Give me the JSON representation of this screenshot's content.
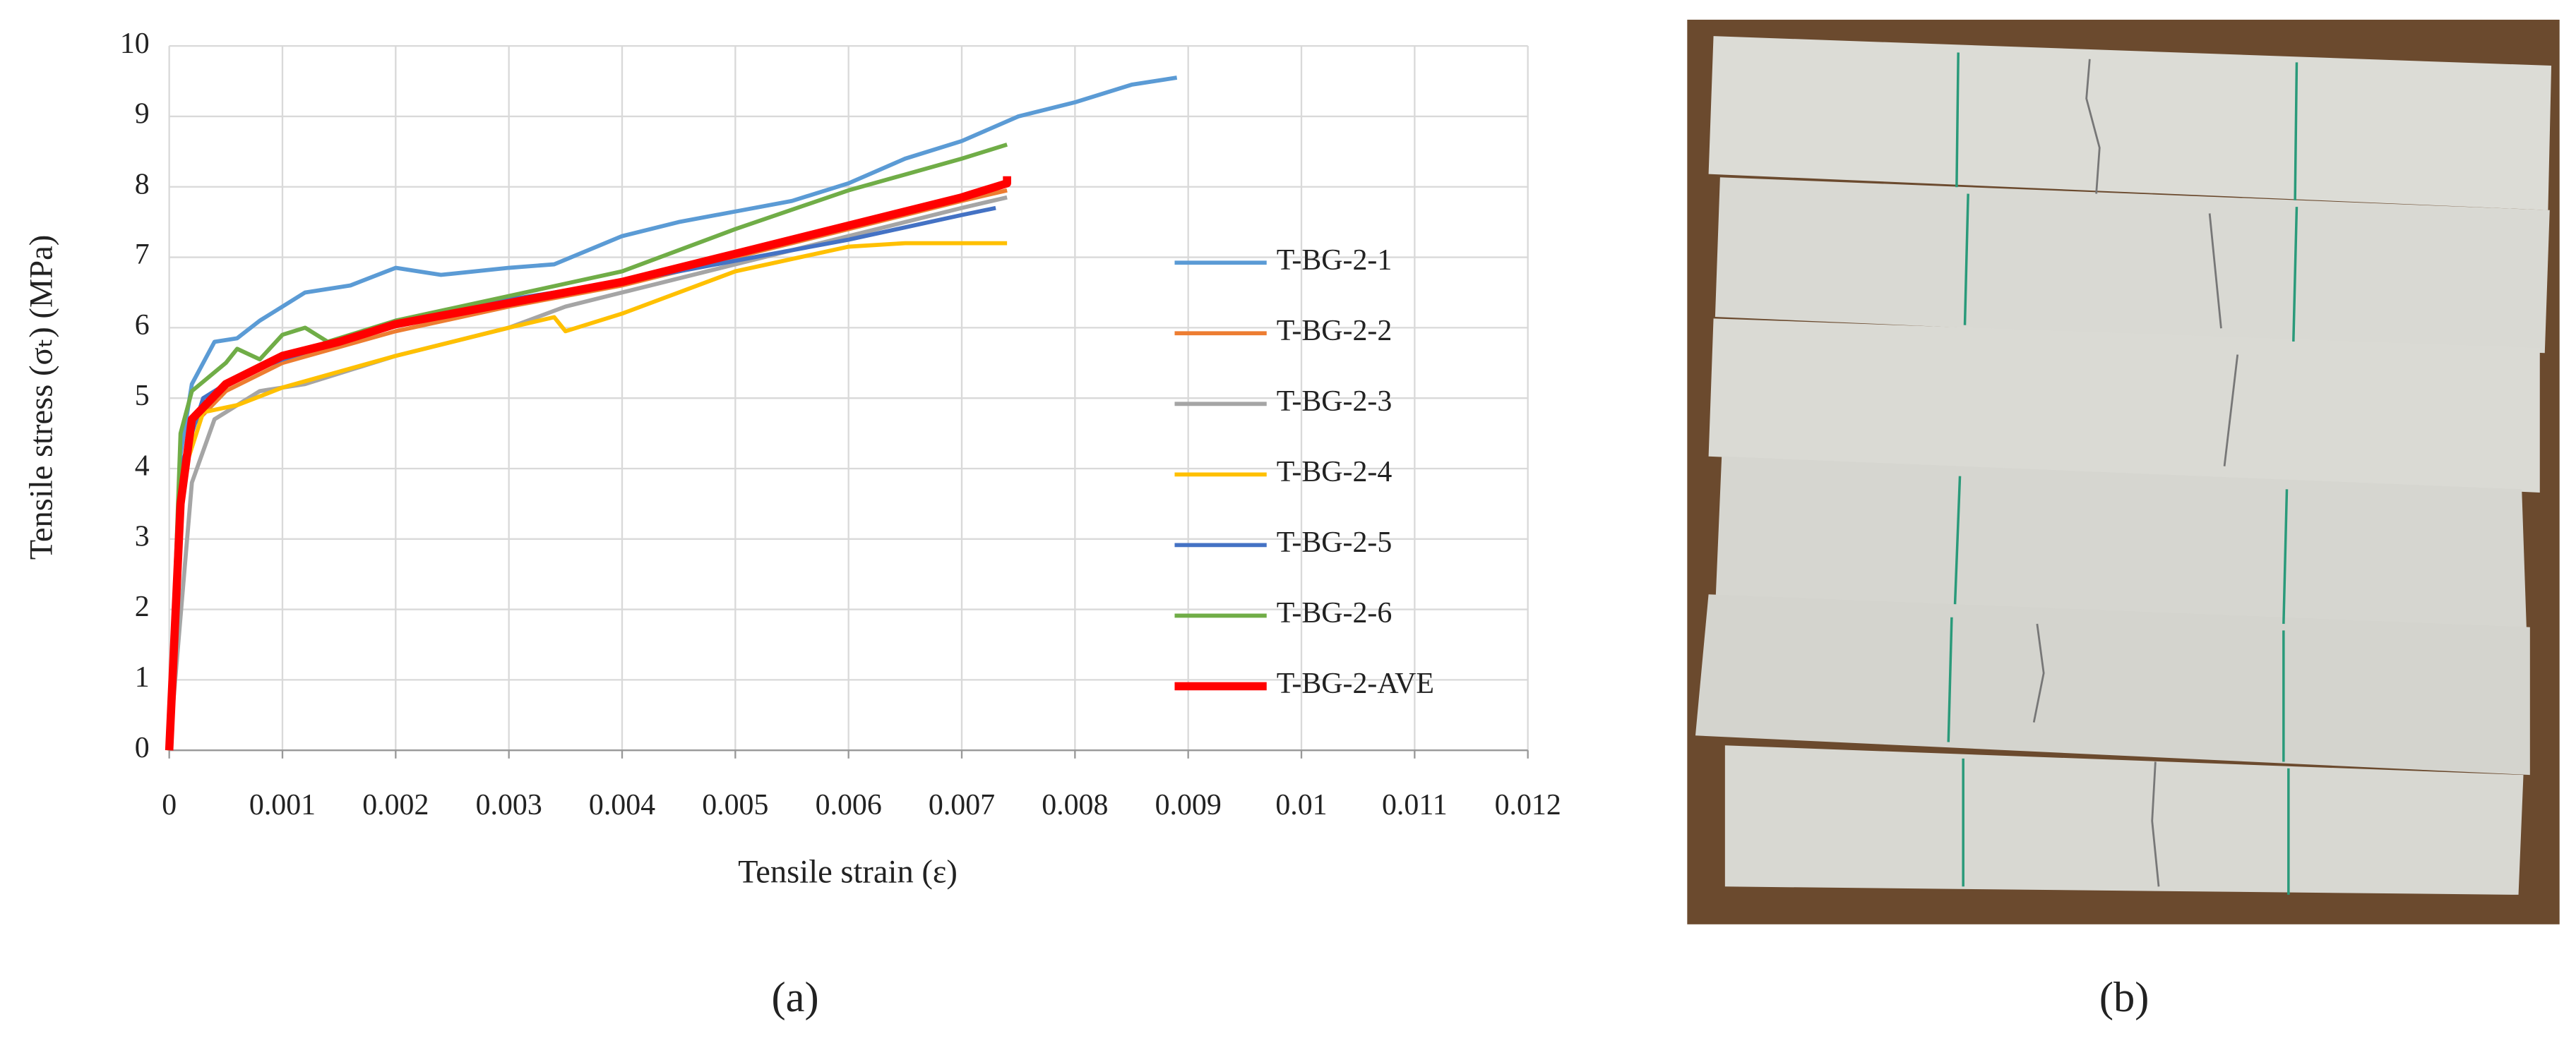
{
  "chart_data": {
    "type": "line",
    "xlabel": "Tensile strain (ε)",
    "ylabel": "Tensile stress (σₜ) (MPa)",
    "xlim": [
      0,
      0.012
    ],
    "xticks": [
      0,
      0.001,
      0.002,
      0.003,
      0.004,
      0.005,
      0.006,
      0.007,
      0.008,
      0.009,
      0.01,
      0.011,
      0.012
    ],
    "ylim": [
      0,
      10
    ],
    "yticks": [
      0,
      1,
      2,
      3,
      4,
      5,
      6,
      7,
      8,
      9,
      10
    ],
    "grid": true,
    "legend": "right",
    "series": [
      {
        "name": "T-BG-2-1",
        "color": "#5b9bd5",
        "line_width": 2.5,
        "x": [
          0,
          0.0001,
          0.0002,
          0.0004,
          0.0006,
          0.0008,
          0.001,
          0.0012,
          0.0016,
          0.002,
          0.0024,
          0.003,
          0.0034,
          0.004,
          0.0045,
          0.005,
          0.0055,
          0.006,
          0.0065,
          0.007,
          0.0075,
          0.008,
          0.0085,
          0.0089
        ],
        "values": [
          0,
          4.2,
          5.2,
          5.8,
          5.85,
          6.1,
          6.3,
          6.5,
          6.6,
          6.85,
          6.75,
          6.85,
          6.9,
          7.3,
          7.5,
          7.65,
          7.8,
          8.05,
          8.4,
          8.65,
          9.0,
          9.2,
          9.45,
          9.55
        ]
      },
      {
        "name": "T-BG-2-2",
        "color": "#ed7d31",
        "line_width": 2.5,
        "x": [
          0,
          0.0001,
          0.0002,
          0.0005,
          0.001,
          0.002,
          0.003,
          0.004,
          0.005,
          0.006,
          0.007,
          0.0074
        ],
        "values": [
          0,
          3.5,
          4.6,
          5.1,
          5.5,
          5.95,
          6.3,
          6.6,
          7.0,
          7.4,
          7.8,
          7.95
        ]
      },
      {
        "name": "T-BG-2-3",
        "color": "#a5a5a5",
        "line_width": 2.5,
        "x": [
          0,
          0.0002,
          0.0004,
          0.0008,
          0.0012,
          0.002,
          0.003,
          0.0035,
          0.004,
          0.005,
          0.006,
          0.007,
          0.0074
        ],
        "values": [
          0,
          3.8,
          4.7,
          5.1,
          5.2,
          5.6,
          6.0,
          6.3,
          6.5,
          6.9,
          7.3,
          7.7,
          7.85
        ]
      },
      {
        "name": "T-BG-2-4",
        "color": "#ffc000",
        "line_width": 2.5,
        "x": [
          0,
          0.0001,
          0.0003,
          0.0006,
          0.001,
          0.002,
          0.003,
          0.0034,
          0.0035,
          0.004,
          0.005,
          0.006,
          0.0065,
          0.0074
        ],
        "values": [
          0,
          3.8,
          4.8,
          4.9,
          5.15,
          5.6,
          6.0,
          6.15,
          5.95,
          6.2,
          6.8,
          7.15,
          7.2,
          7.2
        ]
      },
      {
        "name": "T-BG-2-5",
        "color": "#4472c4",
        "line_width": 2.5,
        "x": [
          0,
          0.0001,
          0.0003,
          0.0006,
          0.001,
          0.0015,
          0.002,
          0.003,
          0.004,
          0.005,
          0.006,
          0.007,
          0.0073
        ],
        "values": [
          0,
          4.0,
          5.0,
          5.3,
          5.55,
          5.8,
          6.1,
          6.4,
          6.65,
          6.95,
          7.25,
          7.6,
          7.7
        ]
      },
      {
        "name": "T-BG-2-6",
        "color": "#70ad47",
        "line_width": 2.5,
        "x": [
          0,
          0.0001,
          0.0002,
          0.0005,
          0.0006,
          0.0008,
          0.001,
          0.0012,
          0.0014,
          0.002,
          0.003,
          0.004,
          0.005,
          0.006,
          0.007,
          0.0074
        ],
        "values": [
          0,
          4.5,
          5.1,
          5.5,
          5.7,
          5.55,
          5.9,
          6.0,
          5.8,
          6.1,
          6.45,
          6.8,
          7.4,
          7.95,
          8.4,
          8.6
        ]
      },
      {
        "name": "T-BG-2-AVE",
        "color": "#ff0000",
        "line_width": 5,
        "x": [
          0,
          0.0001,
          0.0002,
          0.0005,
          0.001,
          0.0015,
          0.002,
          0.003,
          0.004,
          0.005,
          0.006,
          0.007,
          0.0074,
          0.0074
        ],
        "values": [
          0,
          3.5,
          4.7,
          5.2,
          5.6,
          5.8,
          6.05,
          6.35,
          6.65,
          7.05,
          7.45,
          7.85,
          8.05,
          8.15
        ]
      }
    ]
  },
  "figure_labels": [
    "(a)",
    "(b)"
  ]
}
